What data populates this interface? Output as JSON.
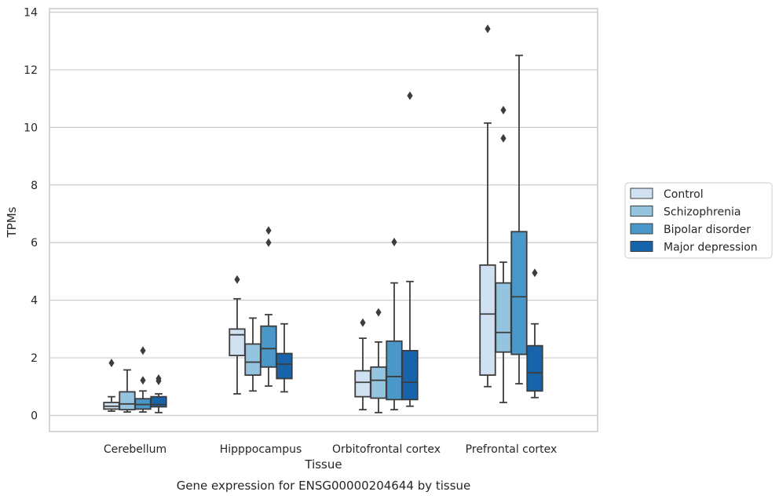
{
  "chart_data": {
    "type": "boxplot",
    "title": "",
    "caption": "Gene expression for ENSG00000204644 by tissue",
    "xlabel": "Tissue",
    "ylabel": "TPMs",
    "ylim": [
      -0.5,
      14.15
    ],
    "yticks": [
      0,
      2,
      4,
      6,
      8,
      10,
      12,
      14
    ],
    "grid": "horizontal",
    "legend_position": "right",
    "categories": [
      "Cerebellum",
      "Hipppocampus",
      "Orbitofrontal cortex",
      "Prefrontal cortex"
    ],
    "series": [
      {
        "name": "Control",
        "color": "#d0e1f2",
        "boxes": [
          {
            "whisker_low": 0.15,
            "q1": 0.22,
            "median": 0.32,
            "q3": 0.45,
            "whisker_high": 0.65,
            "outliers": [
              1.82
            ]
          },
          {
            "whisker_low": 0.75,
            "q1": 2.08,
            "median": 2.8,
            "q3": 3.0,
            "whisker_high": 4.05,
            "outliers": [
              4.72
            ]
          },
          {
            "whisker_low": 0.2,
            "q1": 0.65,
            "median": 1.15,
            "q3": 1.55,
            "whisker_high": 2.68,
            "outliers": [
              3.22
            ]
          },
          {
            "whisker_low": 1.0,
            "q1": 1.4,
            "median": 3.52,
            "q3": 5.22,
            "whisker_high": 10.15,
            "outliers": [
              13.42
            ]
          }
        ]
      },
      {
        "name": "Schizophrenia",
        "color": "#94c4df",
        "boxes": [
          {
            "whisker_low": 0.12,
            "q1": 0.2,
            "median": 0.4,
            "q3": 0.82,
            "whisker_high": 1.58,
            "outliers": []
          },
          {
            "whisker_low": 0.85,
            "q1": 1.4,
            "median": 1.85,
            "q3": 2.48,
            "whisker_high": 3.38,
            "outliers": []
          },
          {
            "whisker_low": 0.1,
            "q1": 0.6,
            "median": 1.22,
            "q3": 1.68,
            "whisker_high": 2.55,
            "outliers": [
              3.58
            ]
          },
          {
            "whisker_low": 0.45,
            "q1": 2.2,
            "median": 2.88,
            "q3": 4.6,
            "whisker_high": 5.32,
            "outliers": [
              10.6,
              9.62
            ]
          }
        ]
      },
      {
        "name": "Bipolar disorder",
        "color": "#4a98c9",
        "boxes": [
          {
            "whisker_low": 0.12,
            "q1": 0.22,
            "median": 0.38,
            "q3": 0.58,
            "whisker_high": 0.85,
            "outliers": [
              2.25,
              1.22
            ]
          },
          {
            "whisker_low": 1.02,
            "q1": 1.68,
            "median": 2.32,
            "q3": 3.1,
            "whisker_high": 3.5,
            "outliers": [
              6.42,
              6.0
            ]
          },
          {
            "whisker_low": 0.2,
            "q1": 0.55,
            "median": 1.35,
            "q3": 2.58,
            "whisker_high": 4.6,
            "outliers": [
              6.02
            ]
          },
          {
            "whisker_low": 1.1,
            "q1": 2.12,
            "median": 4.12,
            "q3": 6.38,
            "whisker_high": 12.5,
            "outliers": []
          }
        ]
      },
      {
        "name": "Major depression",
        "color": "#1764ab",
        "boxes": [
          {
            "whisker_low": 0.1,
            "q1": 0.3,
            "median": 0.38,
            "q3": 0.65,
            "whisker_high": 0.75,
            "outliers": [
              1.28,
              1.2
            ]
          },
          {
            "whisker_low": 0.82,
            "q1": 1.28,
            "median": 1.78,
            "q3": 2.15,
            "whisker_high": 3.18,
            "outliers": []
          },
          {
            "whisker_low": 0.32,
            "q1": 0.55,
            "median": 1.15,
            "q3": 2.25,
            "whisker_high": 4.65,
            "outliers": [
              11.1
            ]
          },
          {
            "whisker_low": 0.62,
            "q1": 0.85,
            "median": 1.48,
            "q3": 2.42,
            "whisker_high": 3.18,
            "outliers": [
              4.95
            ]
          }
        ]
      }
    ]
  }
}
